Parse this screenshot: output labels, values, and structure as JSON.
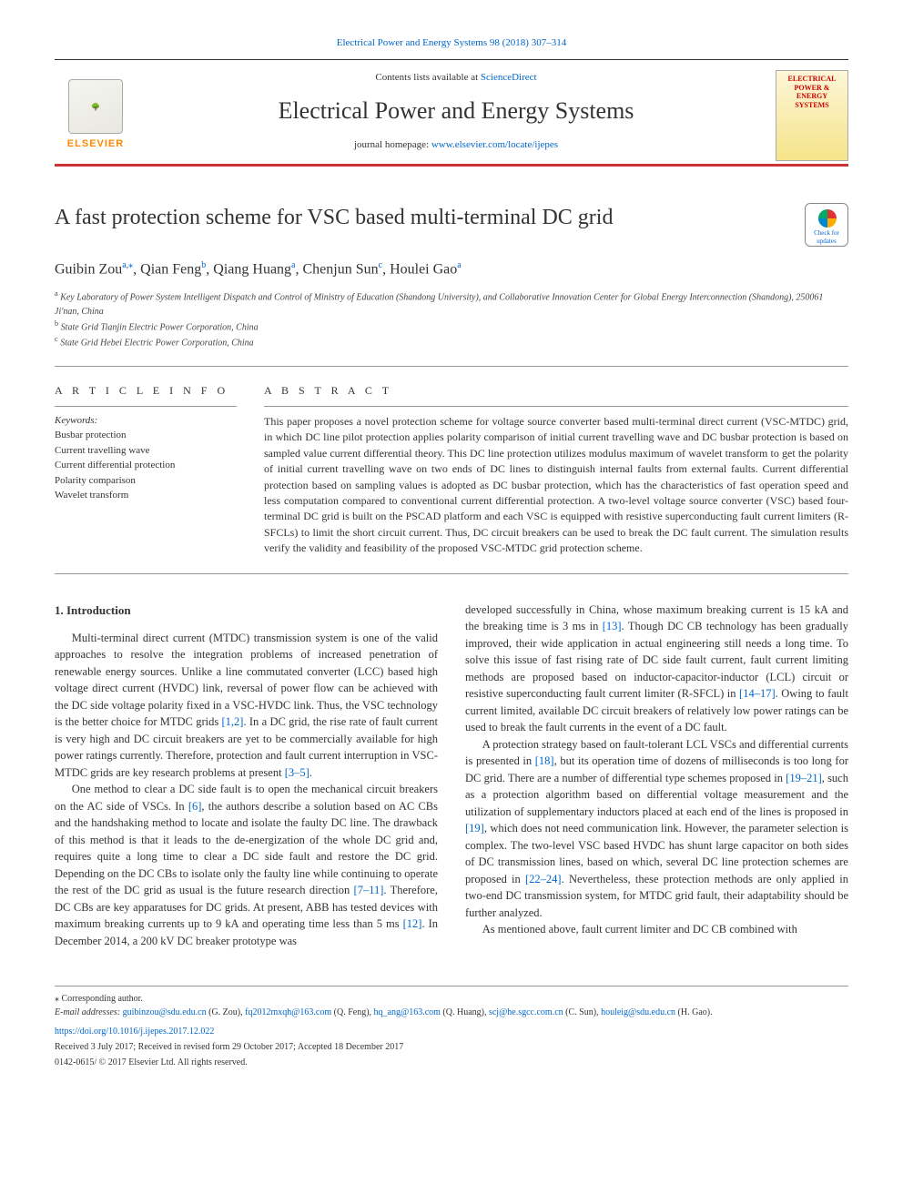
{
  "top_citation": "Electrical Power and Energy Systems 98 (2018) 307–314",
  "header": {
    "contents_prefix": "Contents lists available at ",
    "contents_link": "ScienceDirect",
    "journal_name": "Electrical Power and Energy Systems",
    "homepage_prefix": "journal homepage: ",
    "homepage_url": "www.elsevier.com/locate/ijepes",
    "publisher_name": "ELSEVIER",
    "cover_text": "ELECTRICAL POWER & ENERGY SYSTEMS"
  },
  "article": {
    "title": "A fast protection scheme for VSC based multi-terminal DC grid",
    "updates_label": "Check for updates",
    "authors_html_parts": {
      "a1": "Guibin Zou",
      "s1": "a,",
      "ast": "⁎",
      "a2": ", Qian Feng",
      "s2": "b",
      "a3": ", Qiang Huang",
      "s3": "a",
      "a4": ", Chenjun Sun",
      "s4": "c",
      "a5": ", Houlei Gao",
      "s5": "a"
    },
    "affiliations": {
      "a": "Key Laboratory of Power System Intelligent Dispatch and Control of Ministry of Education (Shandong University), and Collaborative Innovation Center for Global Energy Interconnection (Shandong), 250061 Ji'nan, China",
      "b": "State Grid Tianjin Electric Power Corporation, China",
      "c": "State Grid Hebei Electric Power Corporation, China"
    }
  },
  "article_info_heading": "A R T I C L E  I N F O",
  "keywords_label": "Keywords:",
  "keywords": [
    "Busbar protection",
    "Current travelling wave",
    "Current differential protection",
    "Polarity comparison",
    "Wavelet transform"
  ],
  "abstract_heading": "A B S T R A C T",
  "abstract_text": "This paper proposes a novel protection scheme for voltage source converter based multi-terminal direct current (VSC-MTDC) grid, in which DC line pilot protection applies polarity comparison of initial current travelling wave and DC busbar protection is based on sampled value current differential theory. This DC line protection utilizes modulus maximum of wavelet transform to get the polarity of initial current travelling wave on two ends of DC lines to distinguish internal faults from external faults. Current differential protection based on sampling values is adopted as DC busbar protection, which has the characteristics of fast operation speed and less computation compared to conventional current differential protection. A two-level voltage source converter (VSC) based four-terminal DC grid is built on the PSCAD platform and each VSC is equipped with resistive superconducting fault current limiters (R-SFCLs) to limit the short circuit current. Thus, DC circuit breakers can be used to break the DC fault current. The simulation results verify the validity and feasibility of the proposed VSC-MTDC grid protection scheme.",
  "section1_heading": "1. Introduction",
  "col1": {
    "p1a": "Multi-terminal direct current (MTDC) transmission system is one of the valid approaches to resolve the integration problems of increased penetration of renewable energy sources. Unlike a line commutated converter (LCC) based high voltage direct current (HVDC) link, reversal of power flow can be achieved with the DC side voltage polarity fixed in a VSC-HVDC link. Thus, the VSC technology is the better choice for MTDC grids ",
    "c1": "[1,2]",
    "p1b": ". In a DC grid, the rise rate of fault current is very high and DC circuit breakers are yet to be commercially available for high power ratings currently. Therefore, protection and fault current interruption in VSC-MTDC grids are key research problems at present ",
    "c2": "[3–5]",
    "p1c": ".",
    "p2a": "One method to clear a DC side fault is to open the mechanical circuit breakers on the AC side of VSCs. In ",
    "c3": "[6]",
    "p2b": ", the authors describe a solution based on AC CBs and the handshaking method to locate and isolate the faulty DC line. The drawback of this method is that it leads to the de-energization of the whole DC grid and, requires quite a long time to clear a DC side fault and restore the DC grid. Depending on the DC CBs to isolate only the faulty line while continuing to operate the rest of the DC grid as usual is the future research direction ",
    "c4": "[7–11]",
    "p2c": ". Therefore, DC CBs are key apparatuses for DC grids. At present, ABB has tested devices with maximum breaking currents up to 9 kA and operating time less than 5 ms ",
    "c5": "[12]",
    "p2d": ". In December 2014, a 200 kV DC breaker prototype was"
  },
  "col2": {
    "p1a": "developed successfully in China, whose maximum breaking current is 15 kA and the breaking time is 3 ms in ",
    "c1": "[13]",
    "p1b": ". Though DC CB technology has been gradually improved, their wide application in actual engineering still needs a long time. To solve this issue of fast rising rate of DC side fault current, fault current limiting methods are proposed based on inductor-capacitor-inductor (LCL) circuit or resistive superconducting fault current limiter (R-SFCL) in ",
    "c2": "[14–17]",
    "p1c": ". Owing to fault current limited, available DC circuit breakers of relatively low power ratings can be used to break the fault currents in the event of a DC fault.",
    "p2a": "A protection strategy based on fault-tolerant LCL VSCs and differential currents is presented in ",
    "c3": "[18]",
    "p2b": ", but its operation time of dozens of milliseconds is too long for DC grid. There are a number of differential type schemes proposed in ",
    "c4": "[19–21]",
    "p2c": ", such as a protection algorithm based on differential voltage measurement and the utilization of supplementary inductors placed at each end of the lines is proposed in ",
    "c5": "[19]",
    "p2d": ", which does not need communication link. However, the parameter selection is complex. The two-level VSC based HVDC has shunt large capacitor on both sides of DC transmission lines, based on which, several DC line protection schemes are proposed in ",
    "c6": "[22–24]",
    "p2e": ". Nevertheless, these protection methods are only applied in two-end DC transmission system, for MTDC grid fault, their adaptability should be further analyzed.",
    "p3": "As mentioned above, fault current limiter and DC CB combined with"
  },
  "footnotes": {
    "corr": "⁎ Corresponding author.",
    "email_label": "E-mail addresses: ",
    "emails": [
      {
        "addr": "guibinzou@sdu.edu.cn",
        "who": " (G. Zou), "
      },
      {
        "addr": "fq2012mxqh@163.com",
        "who": " (Q. Feng), "
      },
      {
        "addr": "hq_ang@163.com",
        "who": " (Q. Huang), "
      },
      {
        "addr": "scj@he.sgcc.com.cn",
        "who": " (C. Sun), "
      },
      {
        "addr": "houleig@sdu.edu.cn",
        "who": " (H. Gao)."
      }
    ],
    "doi": "https://doi.org/10.1016/j.ijepes.2017.12.022",
    "received": "Received 3 July 2017; Received in revised form 29 October 2017; Accepted 18 December 2017",
    "copyright": "0142-0615/ © 2017 Elsevier Ltd. All rights reserved."
  },
  "colors": {
    "link": "#0066cc",
    "rule": "#cc3333",
    "text": "#333333"
  }
}
